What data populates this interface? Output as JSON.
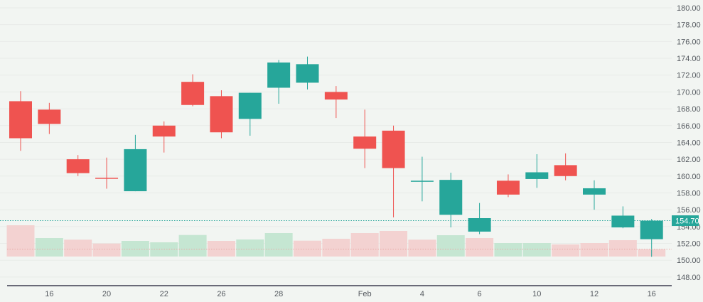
{
  "chart_data": {
    "type": "candlestick",
    "title": "",
    "ylim": [
      148,
      180
    ],
    "y_ticks": [
      "148.00",
      "150.00",
      "152.00",
      "154.00",
      "156.00",
      "158.00",
      "160.00",
      "162.00",
      "164.00",
      "166.00",
      "168.00",
      "170.00",
      "172.00",
      "174.00",
      "176.00",
      "178.00",
      "180.00"
    ],
    "x_ticks": [
      {
        "index": 1,
        "label": "16"
      },
      {
        "index": 3,
        "label": "20"
      },
      {
        "index": 5,
        "label": "22"
      },
      {
        "index": 7,
        "label": "26"
      },
      {
        "index": 9,
        "label": "28"
      },
      {
        "index": 12,
        "label": "Feb"
      },
      {
        "index": 14,
        "label": "4"
      },
      {
        "index": 16,
        "label": "6"
      },
      {
        "index": 18,
        "label": "10"
      },
      {
        "index": 20,
        "label": "12"
      },
      {
        "index": 22,
        "label": "16"
      }
    ],
    "candles": [
      {
        "o": 168.9,
        "h": 170.1,
        "l": 163.0,
        "c": 164.5,
        "dir": "down",
        "vol": 44,
        "vdir": "down"
      },
      {
        "o": 167.9,
        "h": 168.7,
        "l": 165.0,
        "c": 166.2,
        "dir": "down",
        "vol": 26,
        "vdir": "up"
      },
      {
        "o": 162.0,
        "h": 162.5,
        "l": 160.0,
        "c": 160.35,
        "dir": "down",
        "vol": 23.7,
        "vdir": "down"
      },
      {
        "o": 159.8,
        "h": 162.2,
        "l": 158.5,
        "c": 159.7,
        "dir": "down",
        "vol": 18.3,
        "vdir": "down"
      },
      {
        "o": 158.2,
        "h": 164.9,
        "l": 158.2,
        "c": 163.2,
        "dir": "up",
        "vol": 22,
        "vdir": "up"
      },
      {
        "o": 166.0,
        "h": 166.5,
        "l": 162.8,
        "c": 164.7,
        "dir": "down",
        "vol": 20,
        "vdir": "up"
      },
      {
        "o": 171.2,
        "h": 172.1,
        "l": 168.3,
        "c": 168.45,
        "dir": "down",
        "vol": 30.3,
        "vdir": "up"
      },
      {
        "o": 169.5,
        "h": 170.2,
        "l": 164.5,
        "c": 165.2,
        "dir": "down",
        "vol": 22,
        "vdir": "down"
      },
      {
        "o": 166.8,
        "h": 169.9,
        "l": 164.8,
        "c": 169.9,
        "dir": "up",
        "vol": 24,
        "vdir": "up"
      },
      {
        "o": 170.5,
        "h": 173.8,
        "l": 168.6,
        "c": 173.5,
        "dir": "up",
        "vol": 33,
        "vdir": "up"
      },
      {
        "o": 171.1,
        "h": 174.2,
        "l": 170.3,
        "c": 173.3,
        "dir": "up",
        "vol": 22.3,
        "vdir": "down"
      },
      {
        "o": 170.0,
        "h": 170.7,
        "l": 166.9,
        "c": 169.1,
        "dir": "down",
        "vol": 25,
        "vdir": "down"
      },
      {
        "o": 164.7,
        "h": 167.9,
        "l": 160.95,
        "c": 163.25,
        "dir": "down",
        "vol": 33,
        "vdir": "down"
      },
      {
        "o": 165.4,
        "h": 166.0,
        "l": 155.1,
        "c": 160.95,
        "dir": "down",
        "vol": 36,
        "vdir": "down"
      },
      {
        "o": 159.35,
        "h": 162.3,
        "l": 157.0,
        "c": 159.45,
        "dir": "up",
        "vol": 23.7,
        "vdir": "down"
      },
      {
        "o": 155.4,
        "h": 160.4,
        "l": 153.9,
        "c": 159.55,
        "dir": "up",
        "vol": 30,
        "vdir": "up"
      },
      {
        "o": 153.4,
        "h": 156.8,
        "l": 153.1,
        "c": 155.0,
        "dir": "up",
        "vol": 26,
        "vdir": "down"
      },
      {
        "o": 159.45,
        "h": 160.2,
        "l": 157.5,
        "c": 157.8,
        "dir": "down",
        "vol": 19,
        "vdir": "up"
      },
      {
        "o": 159.65,
        "h": 162.6,
        "l": 158.6,
        "c": 160.45,
        "dir": "up",
        "vol": 19,
        "vdir": "up"
      },
      {
        "o": 161.3,
        "h": 162.7,
        "l": 159.5,
        "c": 160.0,
        "dir": "down",
        "vol": 17,
        "vdir": "down"
      },
      {
        "o": 157.8,
        "h": 159.5,
        "l": 156.0,
        "c": 158.55,
        "dir": "up",
        "vol": 19,
        "vdir": "down"
      },
      {
        "o": 153.9,
        "h": 156.4,
        "l": 153.8,
        "c": 155.3,
        "dir": "up",
        "vol": 23,
        "vdir": "down"
      },
      {
        "o": 152.5,
        "h": 154.9,
        "l": 150.4,
        "c": 154.7,
        "dir": "up",
        "vol": 10.3,
        "vdir": "down"
      }
    ],
    "last_price": 154.7,
    "last_price_label": "154.70",
    "grid": true
  },
  "colors": {
    "up": "#26a69a",
    "down": "#ef5350",
    "vol_up": "#c5e6d2",
    "vol_down": "#f3d2d1",
    "background": "#f2f5f2",
    "grid": "#e8ebe8",
    "axis": "#3c3c50",
    "text": "#555a60"
  }
}
